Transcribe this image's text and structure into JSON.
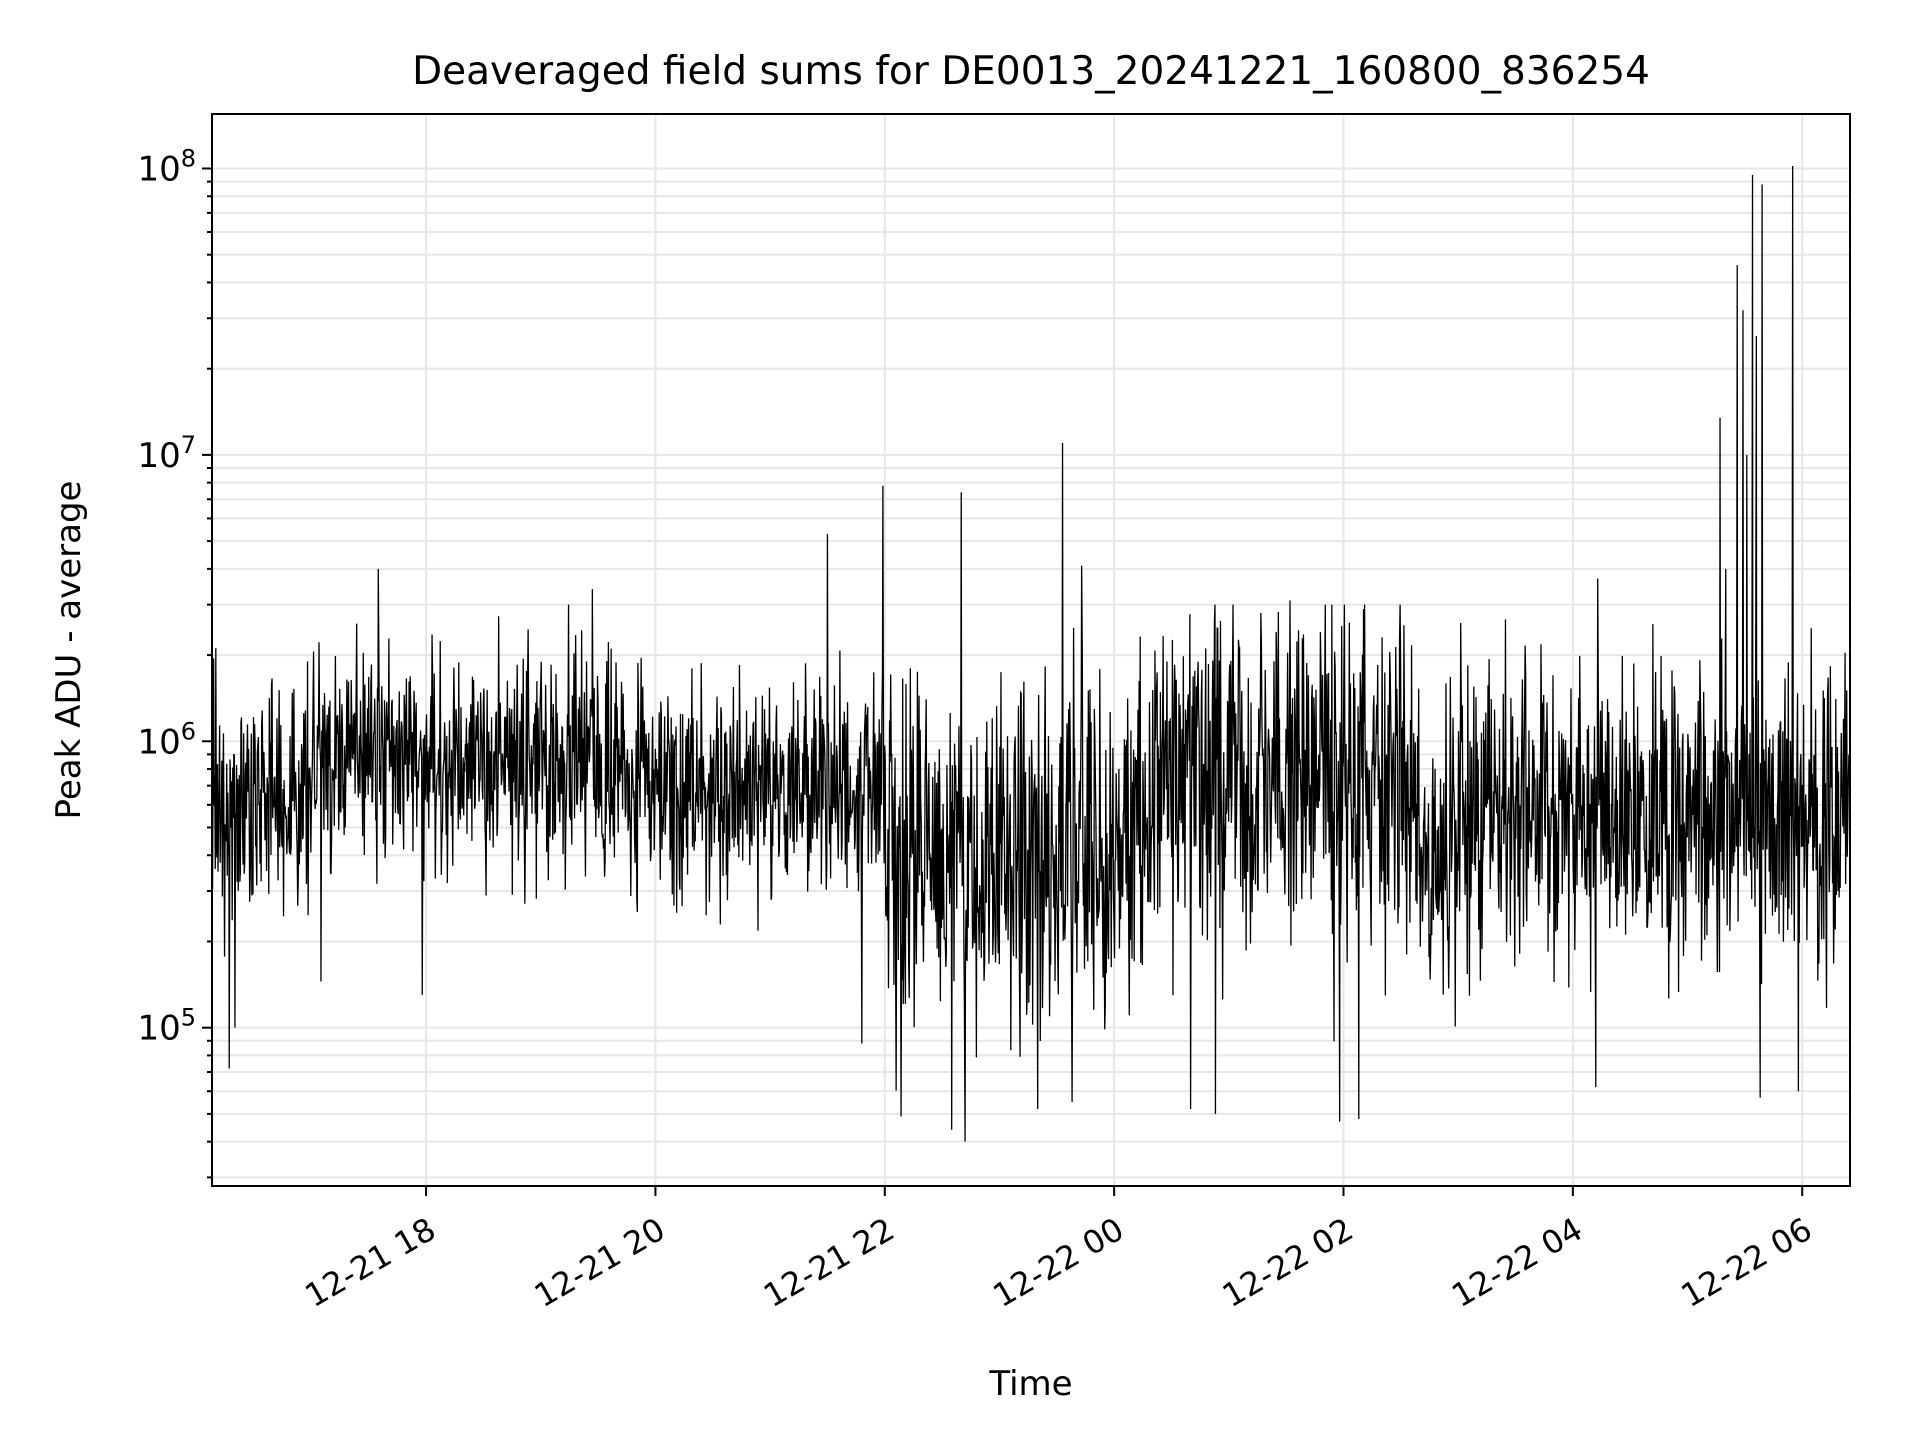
{
  "chart_data": {
    "type": "line",
    "title": "Deaveraged field sums for DE0013_20241221_160800_836254",
    "xlabel": "Time",
    "ylabel": "Peak ADU - average",
    "yscale": "log",
    "ylim": [
      28000,
      155000000
    ],
    "xlim": [
      "2024-12-21 16:08",
      "2024-12-22 06:25"
    ],
    "grid": true,
    "line_color": "#000000",
    "grid_color": "#e6e6e6",
    "x_ticks": [
      {
        "t": "2024-12-21 18:00",
        "label": "12-21 18"
      },
      {
        "t": "2024-12-21 20:00",
        "label": "12-21 20"
      },
      {
        "t": "2024-12-21 22:00",
        "label": "12-21 22"
      },
      {
        "t": "2024-12-22 00:00",
        "label": "12-22 00"
      },
      {
        "t": "2024-12-22 02:00",
        "label": "12-22 02"
      },
      {
        "t": "2024-12-22 04:00",
        "label": "12-22 04"
      },
      {
        "t": "2024-12-22 06:00",
        "label": "12-22 06"
      }
    ],
    "y_ticks": [
      {
        "value": 100000,
        "base": "10",
        "exp": "5"
      },
      {
        "value": 1000000,
        "base": "10",
        "exp": "6"
      },
      {
        "value": 10000000,
        "base": "10",
        "exp": "7"
      },
      {
        "value": 100000000,
        "base": "10",
        "exp": "8"
      }
    ],
    "segments": [
      {
        "start": "2024-12-21 16:08",
        "end": "2024-12-21 17:00",
        "median": 650000,
        "spread": 0.62
      },
      {
        "start": "2024-12-21 17:00",
        "end": "2024-12-21 19:30",
        "median": 850000,
        "spread": 0.55
      },
      {
        "start": "2024-12-21 19:30",
        "end": "2024-12-21 22:00",
        "median": 700000,
        "spread": 0.55
      },
      {
        "start": "2024-12-21 22:00",
        "end": "2024-12-22 00:20",
        "median": 380000,
        "spread": 0.9
      },
      {
        "start": "2024-12-22 00:20",
        "end": "2024-12-22 02:40",
        "median": 700000,
        "spread": 0.85
      },
      {
        "start": "2024-12-22 02:40",
        "end": "2024-12-22 03:00",
        "median": 400000,
        "spread": 0.75
      },
      {
        "start": "2024-12-22 03:00",
        "end": "2024-12-22 06:25",
        "median": 550000,
        "spread": 0.75
      }
    ],
    "spikes": [
      {
        "t": "2024-12-21 17:35",
        "value": 4000000
      },
      {
        "t": "2024-12-21 19:27",
        "value": 3400000
      },
      {
        "t": "2024-12-21 21:30",
        "value": 5300000
      },
      {
        "t": "2024-12-21 21:59",
        "value": 7800000
      },
      {
        "t": "2024-12-21 22:40",
        "value": 7400000
      },
      {
        "t": "2024-12-21 23:33",
        "value": 11000000
      },
      {
        "t": "2024-12-21 23:43",
        "value": 4100000
      },
      {
        "t": "2024-12-22 01:32",
        "value": 3100000
      },
      {
        "t": "2024-12-22 04:13",
        "value": 3700000
      },
      {
        "t": "2024-12-22 05:17",
        "value": 13500000
      },
      {
        "t": "2024-12-22 05:20",
        "value": 4000000
      },
      {
        "t": "2024-12-22 05:26",
        "value": 46000000
      },
      {
        "t": "2024-12-22 05:29",
        "value": 32000000
      },
      {
        "t": "2024-12-22 05:31",
        "value": 10000000
      },
      {
        "t": "2024-12-22 05:34",
        "value": 95000000
      },
      {
        "t": "2024-12-22 05:36",
        "value": 26000000
      },
      {
        "t": "2024-12-22 05:39",
        "value": 88000000
      },
      {
        "t": "2024-12-22 05:55",
        "value": 102000000
      }
    ],
    "dips": [
      {
        "t": "2024-12-21 16:17",
        "value": 72000
      },
      {
        "t": "2024-12-21 16:20",
        "value": 100000
      },
      {
        "t": "2024-12-21 17:05",
        "value": 145000
      },
      {
        "t": "2024-12-21 17:58",
        "value": 130000
      },
      {
        "t": "2024-12-21 21:48",
        "value": 88000
      },
      {
        "t": "2024-12-21 22:35",
        "value": 44000
      },
      {
        "t": "2024-12-21 22:42",
        "value": 40000
      },
      {
        "t": "2024-12-21 23:20",
        "value": 52000
      },
      {
        "t": "2024-12-21 23:38",
        "value": 55000
      },
      {
        "t": "2024-12-22 00:40",
        "value": 52000
      },
      {
        "t": "2024-12-22 00:53",
        "value": 50000
      },
      {
        "t": "2024-12-22 01:58",
        "value": 47000
      },
      {
        "t": "2024-12-22 02:08",
        "value": 48000
      },
      {
        "t": "2024-12-22 04:12",
        "value": 62000
      },
      {
        "t": "2024-12-22 05:38",
        "value": 57000
      },
      {
        "t": "2024-12-22 05:58",
        "value": 60000
      }
    ]
  }
}
